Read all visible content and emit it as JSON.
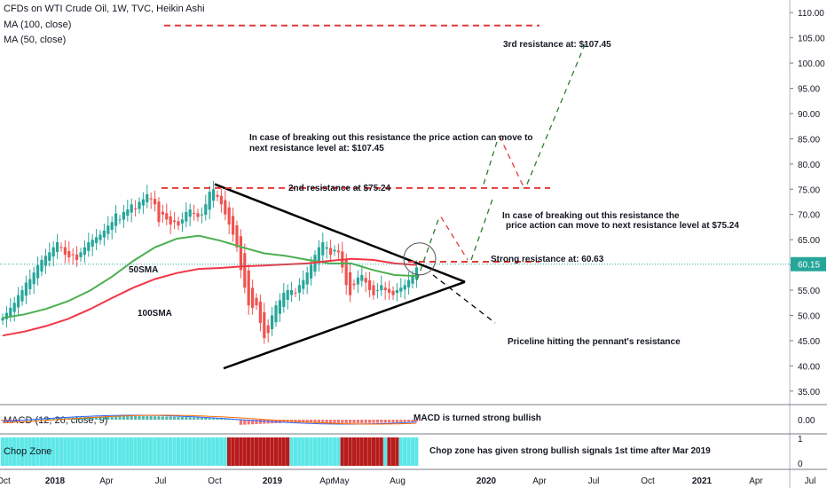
{
  "header": {
    "title": "CFDs on WTI Crude Oil, 1W, TVC, Heikin Ashi",
    "ma100_label": "MA (100, close)",
    "ma50_label": "MA (50, close)"
  },
  "colors": {
    "up": "#26a69a",
    "down": "#ef5350",
    "ma50": "#4caf50",
    "ma100": "#f23645",
    "annot_red": "#e53935",
    "annot_green": "#2e7d32",
    "price_tag": "#26a69a",
    "chop_cyan": "#5ee7e7",
    "chop_red": "#b71c1c"
  },
  "chart_data": {
    "type": "candlestick",
    "price_axis": {
      "ylim": [
        32.5,
        112.5
      ],
      "ticks": [
        "110.00",
        "105.00",
        "100.00",
        "95.00",
        "90.00",
        "85.00",
        "80.00",
        "75.00",
        "70.00",
        "65.00",
        "60.00",
        "55.00",
        "50.00",
        "45.00",
        "40.00",
        "35.00"
      ],
      "last_price": "60.15"
    },
    "time_axis": {
      "labels": [
        "Oct",
        "2018",
        "Apr",
        "Jul",
        "Oct",
        "2019",
        "Apr",
        "May",
        "Aug",
        "2020",
        "Apr",
        "Jul",
        "Oct",
        "2021",
        "Apr",
        "Jul"
      ]
    },
    "series": [
      {
        "name": "50SMA",
        "values": [
          49.5,
          50.2,
          51.3,
          52.8,
          54.9,
          57.6,
          60.8,
          63.5,
          65.2,
          65.8,
          64.8,
          63.5,
          62.3,
          61.8,
          61.0,
          60.3,
          60.3,
          59.0,
          58.0,
          57.8
        ]
      },
      {
        "name": "100SMA",
        "values": [
          46.0,
          46.8,
          47.9,
          49.3,
          51.2,
          53.4,
          55.5,
          57.2,
          58.4,
          59.2,
          59.4,
          59.7,
          59.9,
          60.1,
          60.3,
          60.8,
          61.2,
          61.0,
          60.3,
          60.0
        ]
      }
    ],
    "candles_close": [
      49.5,
      50.5,
      51.5,
      52.5,
      54.0,
      55.0,
      56.5,
      57.2,
      58.5,
      60.0,
      61.0,
      61.8,
      62.5,
      63.5,
      64.5,
      63.5,
      62.0,
      61.5,
      62.0,
      61.0,
      62.5,
      63.5,
      64.5,
      65.0,
      65.5,
      66.0,
      66.8,
      67.8,
      68.5,
      70.2,
      69.0,
      70.5,
      71.0,
      72.0,
      71.0,
      72.5,
      73.0,
      74.0,
      73.0,
      72.0,
      68.5,
      70.0,
      69.0,
      68.0,
      68.5,
      67.8,
      69.0,
      70.5,
      71.0,
      70.2,
      69.5,
      70.0,
      72.0,
      74.5,
      75.0,
      73.5,
      72.0,
      70.0,
      68.0,
      66.0,
      63.5,
      59.0,
      55.5,
      52.0,
      51.5,
      52.0,
      48.5,
      45.5,
      46.5,
      50.0,
      52.0,
      53.0,
      54.5,
      55.0,
      55.0,
      54.5,
      56.0,
      57.0,
      58.5,
      60.0,
      62.0,
      63.5,
      64.5,
      63.5,
      62.0,
      63.0,
      62.5,
      59.5,
      56.0,
      54.0,
      56.0,
      57.5,
      58.0,
      56.5,
      55.0,
      54.0,
      55.0,
      56.0,
      55.0,
      54.5,
      54.0,
      55.0,
      55.5,
      56.0,
      57.0,
      58.0,
      59.5
    ],
    "annotations": {
      "label_50sma": "50SMA",
      "label_100sma": "100SMA",
      "res1": "Strong resistance at: 60.63",
      "res2": "2nd resistance at $75.24",
      "res3": "3rd resistance at: $107.45",
      "note_107_l1": "In case of breaking out this resistance the price action can move to",
      "note_107_l2": "next resistance level at: $107.45",
      "note_75_l1": "In case of breaking out this resistance the",
      "note_75_l2": "price action can move to next resistance level at $75.24",
      "pennant": "Priceline hitting the pennant's resistance"
    },
    "resistance_levels": [
      60.63,
      75.24,
      107.45
    ]
  },
  "macd": {
    "label": "MACD (12, 26, close, 9)",
    "note": "MACD is turned strong bullish",
    "tick": "0.00"
  },
  "chop": {
    "label": "Chop Zone",
    "note": "Chop zone has given strong bullish signals 1st time after Mar 2019",
    "tick_top": "1",
    "tick_bottom": "0"
  }
}
